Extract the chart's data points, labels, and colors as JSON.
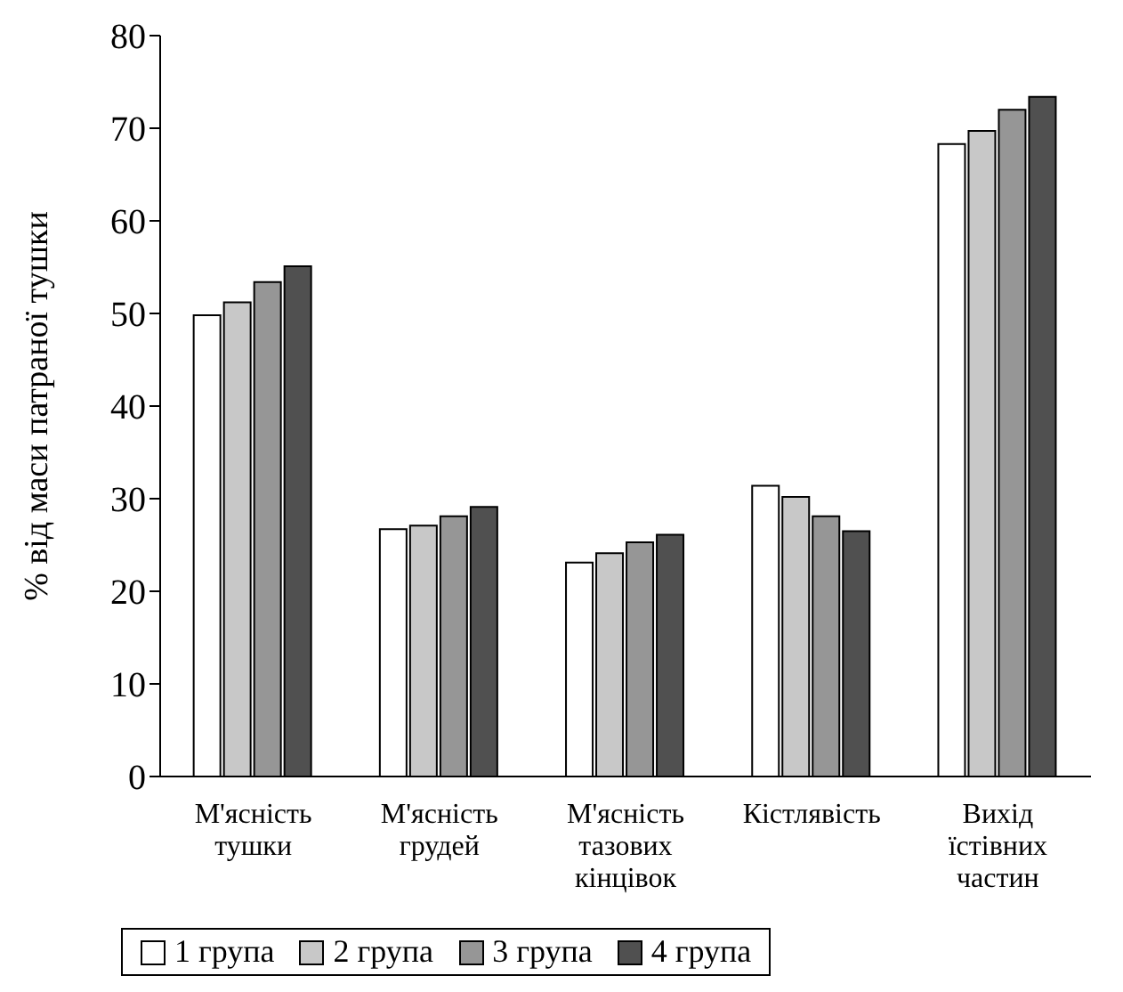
{
  "chart_data": {
    "type": "bar",
    "ylabel": "% від маси патраної тушки",
    "categories": [
      "М'ясність тушки",
      "М'ясність грудей",
      "М'ясність тазових кінцівок",
      "Кістлявість",
      "Вихід їстівних частин"
    ],
    "series": [
      {
        "name": "1 група",
        "color": "#ffffff",
        "values": [
          49.8,
          26.7,
          23.1,
          31.4,
          68.3
        ]
      },
      {
        "name": "2 група",
        "color": "#c8c8c8",
        "values": [
          51.2,
          27.1,
          24.1,
          30.2,
          69.7
        ]
      },
      {
        "name": "3 група",
        "color": "#969696",
        "values": [
          53.4,
          28.1,
          25.3,
          28.1,
          72.0
        ]
      },
      {
        "name": "4 група",
        "color": "#505050",
        "values": [
          55.1,
          29.1,
          26.1,
          26.5,
          73.4
        ]
      }
    ],
    "ylim": [
      0,
      80
    ],
    "yticks": [
      0,
      10,
      20,
      30,
      40,
      50,
      60,
      70,
      80
    ],
    "grid": false,
    "legend": "bottom"
  }
}
